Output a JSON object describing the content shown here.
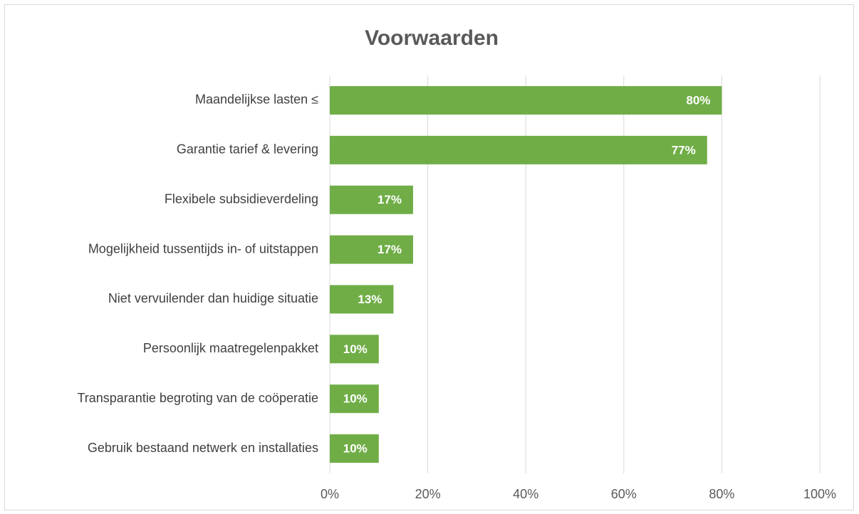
{
  "chart_data": {
    "type": "bar",
    "orientation": "horizontal",
    "title": "Voorwaarden",
    "categories": [
      "Maandelijkse lasten ≤",
      "Garantie tarief & levering",
      "Flexibele subsidieverdeling",
      "Mogelijkheid tussentijds in- of uitstappen",
      "Niet vervuilender dan huidige situatie",
      "Persoonlijk maatregelenpakket",
      "Transparantie begroting van de coöperatie",
      "Gebruik bestaand netwerk en installaties"
    ],
    "values": [
      80,
      77,
      17,
      17,
      13,
      10,
      10,
      10
    ],
    "value_labels": [
      "80%",
      "77%",
      "17%",
      "17%",
      "13%",
      "10%",
      "10%",
      "10%"
    ],
    "color": "#70ad47",
    "xlim": [
      0,
      100
    ],
    "xticks": [
      {
        "value": 0,
        "label": "0%"
      },
      {
        "value": 20,
        "label": "20%"
      },
      {
        "value": 40,
        "label": "40%"
      },
      {
        "value": 60,
        "label": "60%"
      },
      {
        "value": 80,
        "label": "80%"
      },
      {
        "value": 100,
        "label": "100%"
      }
    ],
    "grid": true
  }
}
